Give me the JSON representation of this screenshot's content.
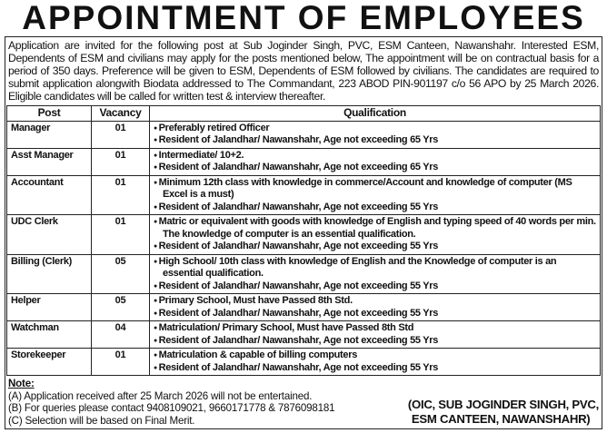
{
  "title": "APPOINTMENT OF EMPLOYEES",
  "intro": "Application are invited for the following post at Sub Joginder Singh, PVC, ESM Canteen, Nawanshahr. Interested ESM, Dependents of ESM and civilians may apply for the posts mentioned below, The appointment will be on contractual basis for a period of 350 days. Preference will be given to ESM, Dependents of ESM followed by civilians. The candidates are required to submit application alongwith Biodata addressed to The Commandant, 223 ABOD PIN-901197 c/o 56 APO by 25 March 2026. Eligible candidates will be called for written test & interview thereafter.",
  "table": {
    "headers": [
      "Post",
      "Vacancy",
      "Qualification"
    ],
    "rows": [
      {
        "post": "Manager",
        "vacancy": "01",
        "qualifications": [
          "Preferably retired Officer",
          "Resident of Jalandhar/ Nawanshahr, Age not exceeding 65 Yrs"
        ]
      },
      {
        "post": "Asst Manager",
        "vacancy": "01",
        "qualifications": [
          "Intermediate/ 10+2.",
          "Resident of Jalandhar/ Nawanshahr, Age not exceeding 65 Yrs"
        ]
      },
      {
        "post": "Accountant",
        "vacancy": "01",
        "qualifications": [
          "Minimum 12th class with knowledge in commerce/Account and knowledge of computer  (MS Excel is a must)",
          "Resident of Jalandhar/ Nawanshahr, Age not exceeding 55 Yrs"
        ]
      },
      {
        "post": "UDC Clerk",
        "vacancy": "01",
        "qualifications": [
          "Matric or equivalent with goods with knowledge of English and typing speed of 40 words per min. The knowledge of computer is an essential qualification.",
          "Resident of Jalandhar/ Nawanshahr, Age not exceeding 55 Yrs"
        ]
      },
      {
        "post": "Billing (Clerk)",
        "vacancy": "05",
        "qualifications": [
          "High School/ 10th class with knowledge of English and the Knowledge of computer is an essential qualification.",
          "Resident of Jalandhar/ Nawanshahr, Age not exceeding 55 Yrs"
        ]
      },
      {
        "post": "Helper",
        "vacancy": "05",
        "qualifications": [
          "Primary School, Must have Passed 8th Std.",
          "Resident of Jalandhar/ Nawanshahr, Age not exceeding 55 Yrs"
        ]
      },
      {
        "post": "Watchman",
        "vacancy": "04",
        "qualifications": [
          "Matriculation/ Primary School, Must have Passed 8th Std",
          "Resident of Jalandhar/ Nawanshahr, Age not exceeding 55 Yrs"
        ]
      },
      {
        "post": "Storekeeper",
        "vacancy": "01",
        "qualifications": [
          "Matriculation & capable of billing computers",
          "Resident of Jalandhar/ Nawanshahr, Age not exceeding 55 Yrs"
        ]
      }
    ]
  },
  "note": {
    "heading": "Note:",
    "items": [
      "(A) Application received after 25 March 2026 will not be entertained.",
      "(B) For queries please contact 9408109021, 9660171778 & 7876098181",
      "(C) Selection will be based on Final Merit."
    ]
  },
  "signature": {
    "line1": "(OIC, SUB JOGINDER SINGH, PVC,",
    "line2": "ESM CANTEEN, NAWANSHAHR)"
  }
}
